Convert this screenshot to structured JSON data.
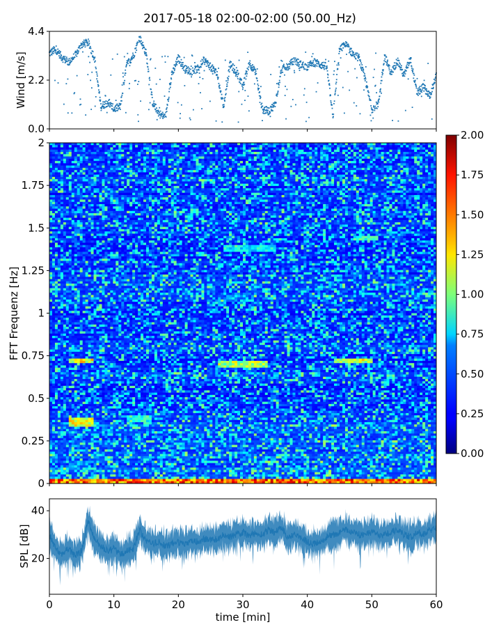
{
  "title": "2017-05-18 02:00-02:00 (50.00_Hz)",
  "colors": {
    "wind_points": "#1f77b4",
    "spl_line": "#1f77b4",
    "colormap": "jet"
  },
  "chart_data": [
    {
      "type": "scatter",
      "panel": "wind",
      "ylabel": "Wind [m/s]",
      "xlabel": "",
      "xlim": [
        0,
        60
      ],
      "ylim": [
        0,
        4.4
      ],
      "yticks": [
        "0.0",
        "2.2",
        "4.4"
      ],
      "y_tick_values": [
        0.0,
        2.2,
        4.4
      ],
      "series": [
        {
          "x": [
            0,
            1,
            2,
            3,
            4,
            5,
            6,
            7,
            8,
            9,
            10,
            11,
            12,
            13,
            14,
            15,
            16,
            17,
            18,
            19,
            20,
            21,
            22,
            23,
            24,
            25,
            26,
            27,
            28,
            29,
            30,
            31,
            32,
            33,
            34,
            35,
            36,
            37,
            38,
            39,
            40,
            41,
            42,
            43,
            44,
            45,
            46,
            47,
            48,
            49,
            50,
            51,
            52,
            53,
            54,
            55,
            56,
            57,
            58,
            59,
            60
          ],
          "y": [
            3.4,
            3.6,
            3.2,
            3.0,
            3.3,
            3.8,
            3.9,
            3.2,
            1.0,
            1.2,
            0.9,
            1.0,
            2.9,
            3.3,
            4.1,
            3.4,
            1.2,
            0.7,
            0.5,
            2.5,
            3.2,
            2.7,
            2.6,
            2.7,
            3.1,
            2.8,
            2.5,
            1.0,
            2.9,
            2.6,
            1.9,
            3.0,
            2.5,
            0.9,
            0.8,
            1.1,
            2.7,
            2.8,
            3.1,
            2.9,
            2.8,
            3.0,
            2.9,
            2.8,
            0.6,
            3.6,
            3.8,
            3.4,
            3.2,
            2.2,
            0.9,
            1.1,
            3.3,
            2.5,
            3.1,
            2.4,
            3.2,
            1.6,
            1.9,
            1.5,
            2.4
          ]
        }
      ]
    },
    {
      "type": "heatmap",
      "panel": "spectrogram",
      "xlabel": "",
      "ylabel": "FFT Frequenz [Hz]",
      "xlim": [
        0,
        60
      ],
      "ylim": [
        0,
        2
      ],
      "yticks": [
        "0",
        "0.25",
        "0.5",
        "0.75",
        "1",
        "1.25",
        "1.5",
        "1.75",
        "2"
      ],
      "y_tick_values": [
        0,
        0.25,
        0.5,
        0.75,
        1,
        1.25,
        1.5,
        1.75,
        2
      ],
      "colorbar": {
        "range": [
          0.0,
          2.0
        ],
        "ticks": [
          "0.00",
          "0.25",
          "0.50",
          "0.75",
          "1.00",
          "1.25",
          "1.50",
          "1.75",
          "2.00"
        ],
        "tick_values": [
          0.0,
          0.25,
          0.5,
          0.75,
          1.0,
          1.25,
          1.5,
          1.75,
          2.0
        ]
      },
      "features": [
        {
          "x_range": [
            0,
            60
          ],
          "freq": 0.01,
          "value": 1.7
        },
        {
          "x_range": [
            3,
            7
          ],
          "freq": 0.72,
          "value": 1.4
        },
        {
          "x_range": [
            3,
            7
          ],
          "freq": 0.36,
          "value": 1.3
        },
        {
          "x_range": [
            12,
            16
          ],
          "freq": 0.38,
          "value": 0.9
        },
        {
          "x_range": [
            26,
            34
          ],
          "freq": 0.7,
          "value": 1.2
        },
        {
          "x_range": [
            44,
            50
          ],
          "freq": 0.72,
          "value": 1.3
        },
        {
          "x_range": [
            27,
            35
          ],
          "freq": 1.38,
          "value": 0.8
        },
        {
          "x_range": [
            47,
            51
          ],
          "freq": 1.44,
          "value": 0.9
        }
      ]
    },
    {
      "type": "area",
      "panel": "spl",
      "xlabel": "time [min]",
      "ylabel": "SPL [dB]",
      "xlim": [
        0,
        60
      ],
      "ylim": [
        5,
        45
      ],
      "xticks": [
        "0",
        "10",
        "20",
        "30",
        "40",
        "50",
        "60"
      ],
      "x_tick_values": [
        0,
        10,
        20,
        30,
        40,
        50,
        60
      ],
      "yticks": [
        "20",
        "40"
      ],
      "y_tick_values": [
        20,
        40
      ],
      "series": [
        {
          "x": [
            0,
            1,
            2,
            3,
            4,
            5,
            6,
            7,
            8,
            9,
            10,
            11,
            12,
            13,
            14,
            15,
            16,
            17,
            18,
            19,
            20,
            21,
            22,
            23,
            24,
            25,
            26,
            27,
            28,
            29,
            30,
            31,
            32,
            33,
            34,
            35,
            36,
            37,
            38,
            39,
            40,
            41,
            42,
            43,
            44,
            45,
            46,
            47,
            48,
            49,
            50,
            51,
            52,
            53,
            54,
            55,
            56,
            57,
            58,
            59,
            60
          ],
          "mean": [
            30,
            24,
            22,
            24,
            21,
            23,
            36,
            28,
            25,
            23,
            24,
            22,
            23,
            24,
            32,
            27,
            26,
            27,
            25,
            26,
            27,
            26,
            27,
            27,
            28,
            28,
            28,
            30,
            29,
            30,
            31,
            29,
            31,
            30,
            32,
            31,
            33,
            29,
            30,
            29,
            27,
            26,
            27,
            29,
            30,
            31,
            32,
            31,
            30,
            30,
            31,
            30,
            30,
            31,
            32,
            30,
            29,
            31,
            30,
            32,
            33
          ],
          "band": [
            6,
            5,
            5,
            5,
            5,
            5,
            5,
            5,
            5,
            5,
            5,
            5,
            5,
            5,
            5,
            5,
            5,
            5,
            5,
            5,
            5,
            5,
            5,
            5,
            5,
            5,
            5,
            5,
            5,
            5,
            5,
            5,
            5,
            5,
            5,
            5,
            5,
            5,
            5,
            5,
            5,
            5,
            5,
            5,
            5,
            5,
            5,
            5,
            5,
            5,
            5,
            5,
            5,
            5,
            5,
            5,
            5,
            5,
            5,
            5,
            5
          ]
        }
      ]
    }
  ]
}
